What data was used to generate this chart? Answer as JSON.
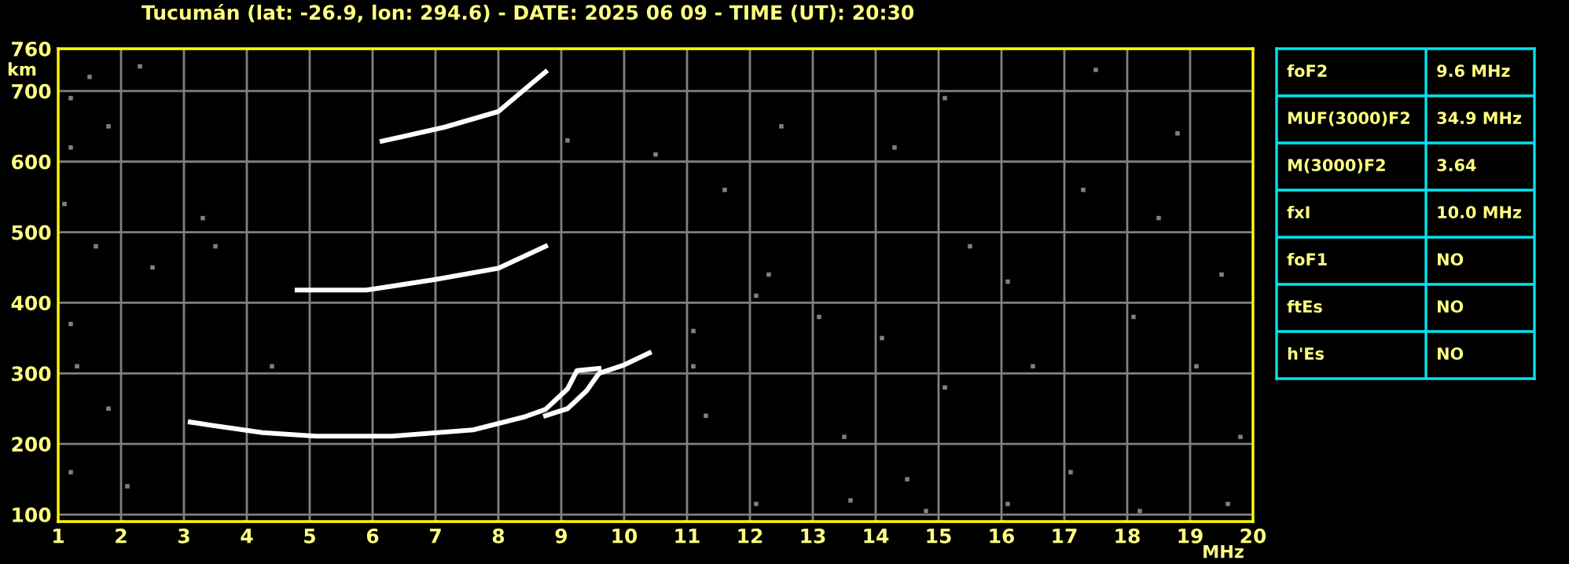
{
  "chart_data": [
    {
      "type": "line",
      "title": "Tucumán (lat: -26.9, lon: 294.6) - DATE: 2025 06 09 - TIME (UT): 20:30",
      "xlabel": "MHz",
      "ylabel": "km",
      "xlim": [
        1,
        20
      ],
      "xticks": [
        1,
        2,
        3,
        4,
        5,
        6,
        7,
        8,
        9,
        10,
        11,
        12,
        13,
        14,
        15,
        16,
        17,
        18,
        19,
        20
      ],
      "ylim": [
        90,
        760
      ],
      "yticks": [
        100,
        200,
        300,
        400,
        500,
        600,
        700,
        760
      ],
      "grid": true,
      "legend": false,
      "marker": "none",
      "line_style": "solid",
      "series": [
        {
          "color": "#ffffff",
          "x": [
            3.1,
            3.4,
            4.25,
            5.1,
            6.3,
            7.6,
            8.4,
            8.75,
            9.1,
            9.25,
            9.6
          ],
          "values": [
            231,
            227,
            216,
            211,
            211,
            220,
            238,
            249,
            278,
            304,
            307
          ]
        },
        {
          "color": "#ffffff",
          "x": [
            8.75,
            9.1,
            9.4,
            9.6,
            10.0,
            10.4
          ],
          "values": [
            240,
            250,
            275,
            300,
            312,
            329
          ]
        },
        {
          "color": "#ffffff",
          "x": [
            4.8,
            5.9,
            7.0,
            8.0,
            8.75
          ],
          "values": [
            418,
            418,
            433,
            449,
            480
          ]
        },
        {
          "color": "#ffffff",
          "x": [
            6.15,
            7.15,
            8.0,
            8.6,
            8.75
          ],
          "values": [
            629,
            649,
            671,
            716,
            727
          ]
        },
        {
          "type": "scatter",
          "marker": "square",
          "color": "#808080",
          "x": [
            1.5,
            2.3,
            1.2,
            1.8,
            1.2,
            1.1,
            1.6,
            2.5,
            1.2,
            1.3,
            1.8,
            1.2,
            2.1,
            3.5,
            3.3,
            4.4,
            11.1,
            11.1,
            11.3,
            12.1,
            12.3,
            13.1,
            13.5,
            14.1,
            14.5,
            15.1,
            15.5,
            16.1,
            16.5,
            17.1,
            17.3,
            18.1,
            18.5,
            19.1,
            19.5,
            19.8,
            15.1,
            12.5,
            17.5,
            10.5,
            9.1,
            13.6,
            16.1,
            18.2,
            14.8,
            12.1,
            19.6,
            11.6,
            14.3,
            18.8
          ],
          "values": [
            720,
            735,
            690,
            650,
            620,
            540,
            480,
            450,
            370,
            310,
            250,
            160,
            140,
            480,
            520,
            310,
            360,
            310,
            240,
            410,
            440,
            380,
            210,
            350,
            150,
            280,
            480,
            430,
            310,
            160,
            560,
            380,
            520,
            310,
            440,
            210,
            690,
            650,
            730,
            610,
            630,
            120,
            115,
            105,
            105,
            115,
            115,
            560,
            620,
            640
          ]
        }
      ]
    },
    {
      "type": "other",
      "annotations": [
        "foF2",
        "9.6 MHz",
        "MUF(3000)F2",
        "34.9 MHz",
        "M(3000)F2",
        "3.64",
        "fxI",
        "10.0 MHz",
        "foF1",
        "NO",
        "ftEs",
        "NO",
        "h'Es",
        "NO"
      ]
    }
  ]
}
